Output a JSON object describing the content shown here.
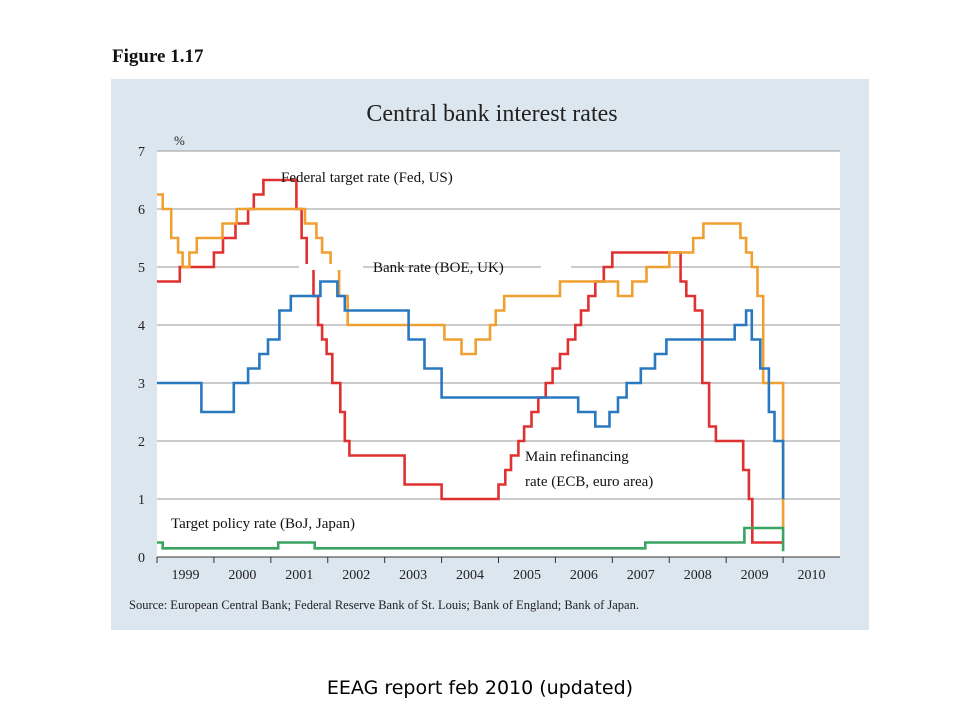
{
  "slide": {
    "figure_label": "Figure 1.17",
    "caption": "EEAG report feb 2010 (updated)"
  },
  "colors": {
    "panel_bg": "#dce6ef",
    "plot_bg": "#ffffff",
    "grid": "#999999",
    "fed": "#e03030",
    "boe": "#f0a030",
    "ecb": "#2a78c0",
    "boj": "#3aa460"
  },
  "chart_data": {
    "type": "line",
    "title": "Central bank interest rates",
    "ylabel": "%",
    "xlabel": "",
    "ylim": [
      0,
      7
    ],
    "xlim": [
      1998.5,
      2010.5
    ],
    "yticks": [
      "0",
      "1",
      "2",
      "3",
      "4",
      "5",
      "6",
      "7"
    ],
    "xticks": [
      "1999",
      "2000",
      "2001",
      "2002",
      "2003",
      "2004",
      "2005",
      "2006",
      "2007",
      "2008",
      "2009",
      "2010"
    ],
    "grid": true,
    "source": "Source: European Central Bank; Federal Reserve Bank of St. Louis; Bank of England; Bank of Japan.",
    "series": [
      {
        "name": "Federal target rate (Fed, US)",
        "key": "fed",
        "step": true,
        "x": [
          1998.5,
          1998.9,
          1999.5,
          1999.66,
          1999.88,
          2000.1,
          2000.2,
          2000.37,
          2000.95,
          2001.04,
          2001.13,
          2001.25,
          2001.33,
          2001.4,
          2001.48,
          2001.58,
          2001.72,
          2001.8,
          2001.88,
          2001.96,
          2002.85,
          2003.5,
          2004.5,
          2004.62,
          2004.72,
          2004.85,
          2004.95,
          2005.08,
          2005.2,
          2005.33,
          2005.45,
          2005.58,
          2005.72,
          2005.85,
          2005.95,
          2006.08,
          2006.2,
          2006.35,
          2006.5,
          2007.7,
          2007.8,
          2007.95,
          2008.08,
          2008.2,
          2008.32,
          2008.8,
          2008.9,
          2008.96,
          2009.5
        ],
        "y": [
          4.75,
          5.0,
          5.25,
          5.5,
          5.75,
          6.0,
          6.25,
          6.5,
          6.0,
          5.5,
          5.0,
          4.5,
          4.0,
          3.75,
          3.5,
          3.0,
          2.5,
          2.0,
          1.75,
          1.75,
          1.25,
          1.0,
          1.25,
          1.5,
          1.75,
          2.0,
          2.25,
          2.5,
          2.75,
          3.0,
          3.25,
          3.5,
          3.75,
          4.0,
          4.25,
          4.5,
          4.75,
          5.0,
          5.25,
          4.75,
          4.5,
          4.25,
          3.0,
          2.25,
          2.0,
          1.5,
          1.0,
          0.25,
          0.25
        ]
      },
      {
        "name": "Bank rate (BOE, UK)",
        "key": "boe",
        "step": true,
        "x": [
          1998.5,
          1998.6,
          1998.75,
          1998.87,
          1998.95,
          1999.07,
          1999.2,
          1999.42,
          1999.65,
          1999.9,
          2000.05,
          2001.1,
          2001.3,
          2001.4,
          2001.55,
          2001.7,
          2001.85,
          2003.1,
          2003.55,
          2003.85,
          2004.1,
          2004.35,
          2004.45,
          2004.6,
          2005.58,
          2006.6,
          2006.85,
          2007.1,
          2007.5,
          2007.92,
          2008.1,
          2008.75,
          2008.85,
          2008.95,
          2009.05,
          2009.15,
          2009.5
        ],
        "y": [
          6.25,
          6.0,
          5.5,
          5.25,
          5.0,
          5.25,
          5.5,
          5.5,
          5.75,
          6.0,
          6.0,
          5.75,
          5.5,
          5.25,
          5.0,
          4.5,
          4.0,
          4.0,
          3.75,
          3.5,
          3.75,
          4.0,
          4.25,
          4.5,
          4.75,
          4.5,
          4.75,
          5.0,
          5.25,
          5.5,
          5.75,
          5.5,
          5.25,
          5.0,
          4.5,
          3.0,
          0.5
        ]
      },
      {
        "name": "Main refinancing rate (ECB, euro area)",
        "key": "ecb",
        "step": true,
        "x": [
          1998.5,
          1999.28,
          1999.85,
          2000.1,
          2000.3,
          2000.45,
          2000.65,
          2000.85,
          2001.37,
          2001.67,
          2001.8,
          2002.92,
          2003.2,
          2003.5,
          2005.9,
          2006.2,
          2006.45,
          2006.6,
          2006.75,
          2007.0,
          2007.25,
          2007.45,
          2008.65,
          2008.85,
          2008.95,
          2009.1,
          2009.25,
          2009.35,
          2009.5
        ],
        "y": [
          3.0,
          2.5,
          3.0,
          3.25,
          3.5,
          3.75,
          4.25,
          4.5,
          4.75,
          4.5,
          4.25,
          3.75,
          3.25,
          2.75,
          2.5,
          2.25,
          2.5,
          2.75,
          3.0,
          3.25,
          3.5,
          3.75,
          4.0,
          4.25,
          3.75,
          3.25,
          2.5,
          2.0,
          1.0
        ]
      },
      {
        "name": "Target policy rate (BoJ, Japan)",
        "key": "boj",
        "step": true,
        "x": [
          1998.5,
          1998.6,
          2000.63,
          2001.1,
          2001.27,
          2006.54,
          2007.08,
          2008.82,
          2009.5
        ],
        "y": [
          0.25,
          0.15,
          0.25,
          0.25,
          0.15,
          0.15,
          0.25,
          0.5,
          0.1
        ]
      }
    ],
    "annotations": [
      {
        "text": "Federal target rate (Fed, US)",
        "series": "fed"
      },
      {
        "text": "Bank rate (BOE, UK)",
        "series": "boe"
      },
      {
        "text": "Main refinancing",
        "series": "ecb"
      },
      {
        "text": "rate (ECB, euro area)",
        "series": "ecb"
      },
      {
        "text": "Target policy rate (BoJ, Japan)",
        "series": "boj"
      }
    ]
  }
}
